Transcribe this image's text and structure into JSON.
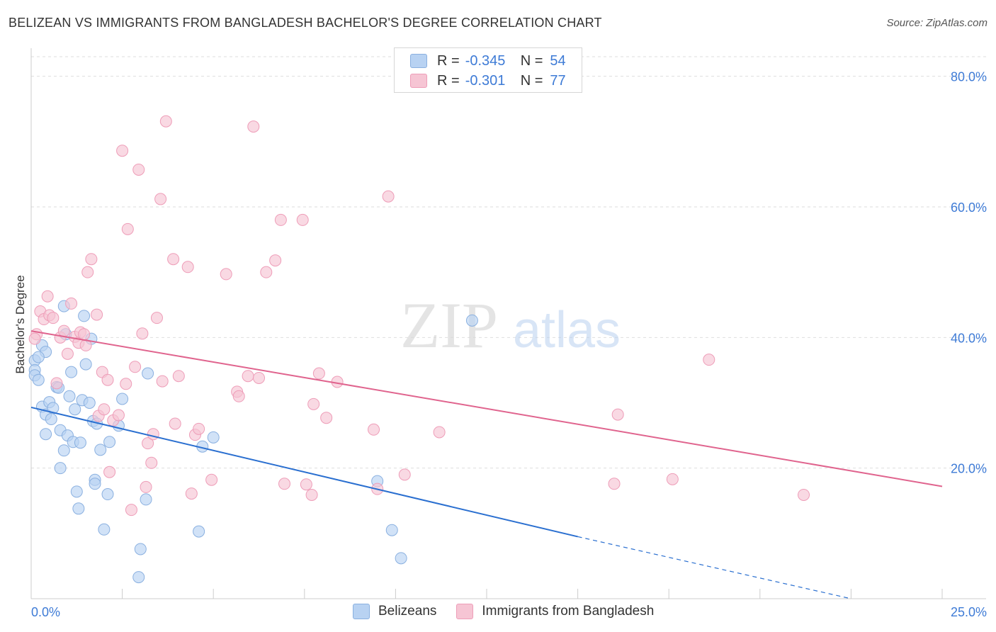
{
  "title": "BELIZEAN VS IMMIGRANTS FROM BANGLADESH BACHELOR'S DEGREE CORRELATION CHART",
  "source": "Source: ZipAtlas.com",
  "watermark": {
    "zip": "ZIP",
    "atlas": "atlas"
  },
  "colors": {
    "blue_fill": "#b8d2f2",
    "blue_stroke": "#8ab0e0",
    "blue_line": "#2a6fd0",
    "pink_fill": "#f6c5d4",
    "pink_stroke": "#ee9db8",
    "pink_line": "#e0648e",
    "value_text": "#3e7bd6"
  },
  "legend": {
    "rows": [
      {
        "r_label": "R =",
        "r_value": "-0.345",
        "n_label": "N =",
        "n_value": "54"
      },
      {
        "r_label": "R =",
        "r_value": "-0.301",
        "n_label": "N =",
        "n_value": "77"
      }
    ],
    "bottom": [
      {
        "label": "Belizeans"
      },
      {
        "label": "Immigrants from Bangladesh"
      }
    ]
  },
  "chart_data": {
    "type": "scatter",
    "xlabel": "",
    "ylabel": "Bachelor's Degree",
    "xlim": [
      0,
      25
    ],
    "ylim": [
      0,
      83
    ],
    "x_tick_labels": [
      {
        "value": 0,
        "label": "0.0%"
      },
      {
        "value": 25,
        "label": "25.0%"
      }
    ],
    "y_tick_labels": [
      {
        "value": 20,
        "label": "20.0%"
      },
      {
        "value": 40,
        "label": "40.0%"
      },
      {
        "value": 60,
        "label": "60.0%"
      },
      {
        "value": 80,
        "label": "80.0%"
      }
    ],
    "series": [
      {
        "name": "Belizeans",
        "color": "blue",
        "trend": {
          "x0": 0,
          "y0": 29.3,
          "x1": 15.0,
          "y1": 9.5,
          "dash_to_x": 22.5,
          "dash_to_y": 0
        },
        "points": [
          [
            0.1,
            36.5
          ],
          [
            0.1,
            35.0
          ],
          [
            0.1,
            34.2
          ],
          [
            0.2,
            33.5
          ],
          [
            0.3,
            38.8
          ],
          [
            0.4,
            37.8
          ],
          [
            0.3,
            29.4
          ],
          [
            0.5,
            30.1
          ],
          [
            0.4,
            28.2
          ],
          [
            0.6,
            29.2
          ],
          [
            0.55,
            27.5
          ],
          [
            0.4,
            25.2
          ],
          [
            0.7,
            32.4
          ],
          [
            0.75,
            32.3
          ],
          [
            0.8,
            25.8
          ],
          [
            0.8,
            20.0
          ],
          [
            0.9,
            22.7
          ],
          [
            0.9,
            44.8
          ],
          [
            1.0,
            25.0
          ],
          [
            1.05,
            31.0
          ],
          [
            1.1,
            34.7
          ],
          [
            1.15,
            24.0
          ],
          [
            1.2,
            29.0
          ],
          [
            1.25,
            16.4
          ],
          [
            1.3,
            13.8
          ],
          [
            1.35,
            23.9
          ],
          [
            1.4,
            30.4
          ],
          [
            1.45,
            43.3
          ],
          [
            1.5,
            35.9
          ],
          [
            1.6,
            30.0
          ],
          [
            1.65,
            39.8
          ],
          [
            1.7,
            27.2
          ],
          [
            1.75,
            18.2
          ],
          [
            1.75,
            17.6
          ],
          [
            1.8,
            26.8
          ],
          [
            1.9,
            22.8
          ],
          [
            2.0,
            10.6
          ],
          [
            2.1,
            16.0
          ],
          [
            2.15,
            24.0
          ],
          [
            2.4,
            26.5
          ],
          [
            2.5,
            30.6
          ],
          [
            2.95,
            3.3
          ],
          [
            3.0,
            7.6
          ],
          [
            3.15,
            15.2
          ],
          [
            3.2,
            34.5
          ],
          [
            4.6,
            10.3
          ],
          [
            4.7,
            23.3
          ],
          [
            5.0,
            24.7
          ],
          [
            9.5,
            18.0
          ],
          [
            9.9,
            10.5
          ],
          [
            10.15,
            6.2
          ],
          [
            12.1,
            42.6
          ],
          [
            0.95,
            40.5
          ],
          [
            0.2,
            37.0
          ]
        ]
      },
      {
        "name": "Immigrants from Bangladesh",
        "color": "pink",
        "trend": {
          "x0": 0,
          "y0": 41.0,
          "x1": 25.0,
          "y1": 17.2
        },
        "points": [
          [
            0.15,
            40.5
          ],
          [
            0.25,
            44.0
          ],
          [
            0.35,
            42.8
          ],
          [
            0.45,
            46.3
          ],
          [
            0.5,
            43.4
          ],
          [
            0.6,
            43.0
          ],
          [
            0.7,
            33.0
          ],
          [
            0.8,
            40.0
          ],
          [
            0.9,
            41.0
          ],
          [
            1.0,
            37.5
          ],
          [
            1.1,
            45.2
          ],
          [
            1.2,
            40.1
          ],
          [
            1.3,
            39.2
          ],
          [
            1.35,
            40.8
          ],
          [
            1.45,
            40.5
          ],
          [
            1.5,
            38.8
          ],
          [
            1.55,
            50.0
          ],
          [
            1.65,
            52.0
          ],
          [
            1.8,
            43.5
          ],
          [
            1.85,
            28.0
          ],
          [
            1.95,
            34.7
          ],
          [
            2.0,
            29.0
          ],
          [
            2.1,
            33.5
          ],
          [
            2.15,
            19.4
          ],
          [
            2.25,
            27.3
          ],
          [
            2.4,
            28.1
          ],
          [
            2.5,
            68.6
          ],
          [
            2.6,
            32.9
          ],
          [
            2.65,
            56.6
          ],
          [
            2.75,
            13.6
          ],
          [
            2.85,
            35.5
          ],
          [
            2.95,
            65.7
          ],
          [
            3.05,
            40.6
          ],
          [
            3.15,
            17.1
          ],
          [
            3.2,
            23.8
          ],
          [
            3.3,
            20.8
          ],
          [
            3.35,
            25.2
          ],
          [
            3.45,
            43.0
          ],
          [
            3.55,
            61.2
          ],
          [
            3.6,
            33.3
          ],
          [
            3.7,
            73.1
          ],
          [
            3.9,
            52.0
          ],
          [
            3.95,
            26.8
          ],
          [
            4.05,
            34.1
          ],
          [
            4.3,
            50.8
          ],
          [
            4.4,
            16.1
          ],
          [
            4.5,
            25.1
          ],
          [
            4.6,
            26.0
          ],
          [
            4.95,
            18.2
          ],
          [
            5.35,
            49.7
          ],
          [
            5.65,
            31.7
          ],
          [
            5.7,
            31.0
          ],
          [
            5.95,
            34.1
          ],
          [
            6.1,
            72.3
          ],
          [
            6.25,
            33.8
          ],
          [
            6.45,
            50.0
          ],
          [
            6.7,
            51.8
          ],
          [
            6.85,
            58.0
          ],
          [
            6.95,
            17.6
          ],
          [
            7.45,
            58.0
          ],
          [
            7.55,
            17.5
          ],
          [
            7.7,
            15.9
          ],
          [
            7.75,
            29.8
          ],
          [
            7.9,
            34.5
          ],
          [
            8.1,
            27.7
          ],
          [
            8.4,
            33.2
          ],
          [
            9.4,
            25.9
          ],
          [
            9.5,
            16.8
          ],
          [
            9.8,
            61.6
          ],
          [
            10.25,
            19.0
          ],
          [
            11.2,
            25.5
          ],
          [
            16.1,
            28.2
          ],
          [
            16.0,
            17.6
          ],
          [
            17.6,
            18.3
          ],
          [
            18.6,
            36.6
          ],
          [
            21.2,
            15.9
          ],
          [
            0.1,
            39.8
          ]
        ]
      }
    ]
  }
}
